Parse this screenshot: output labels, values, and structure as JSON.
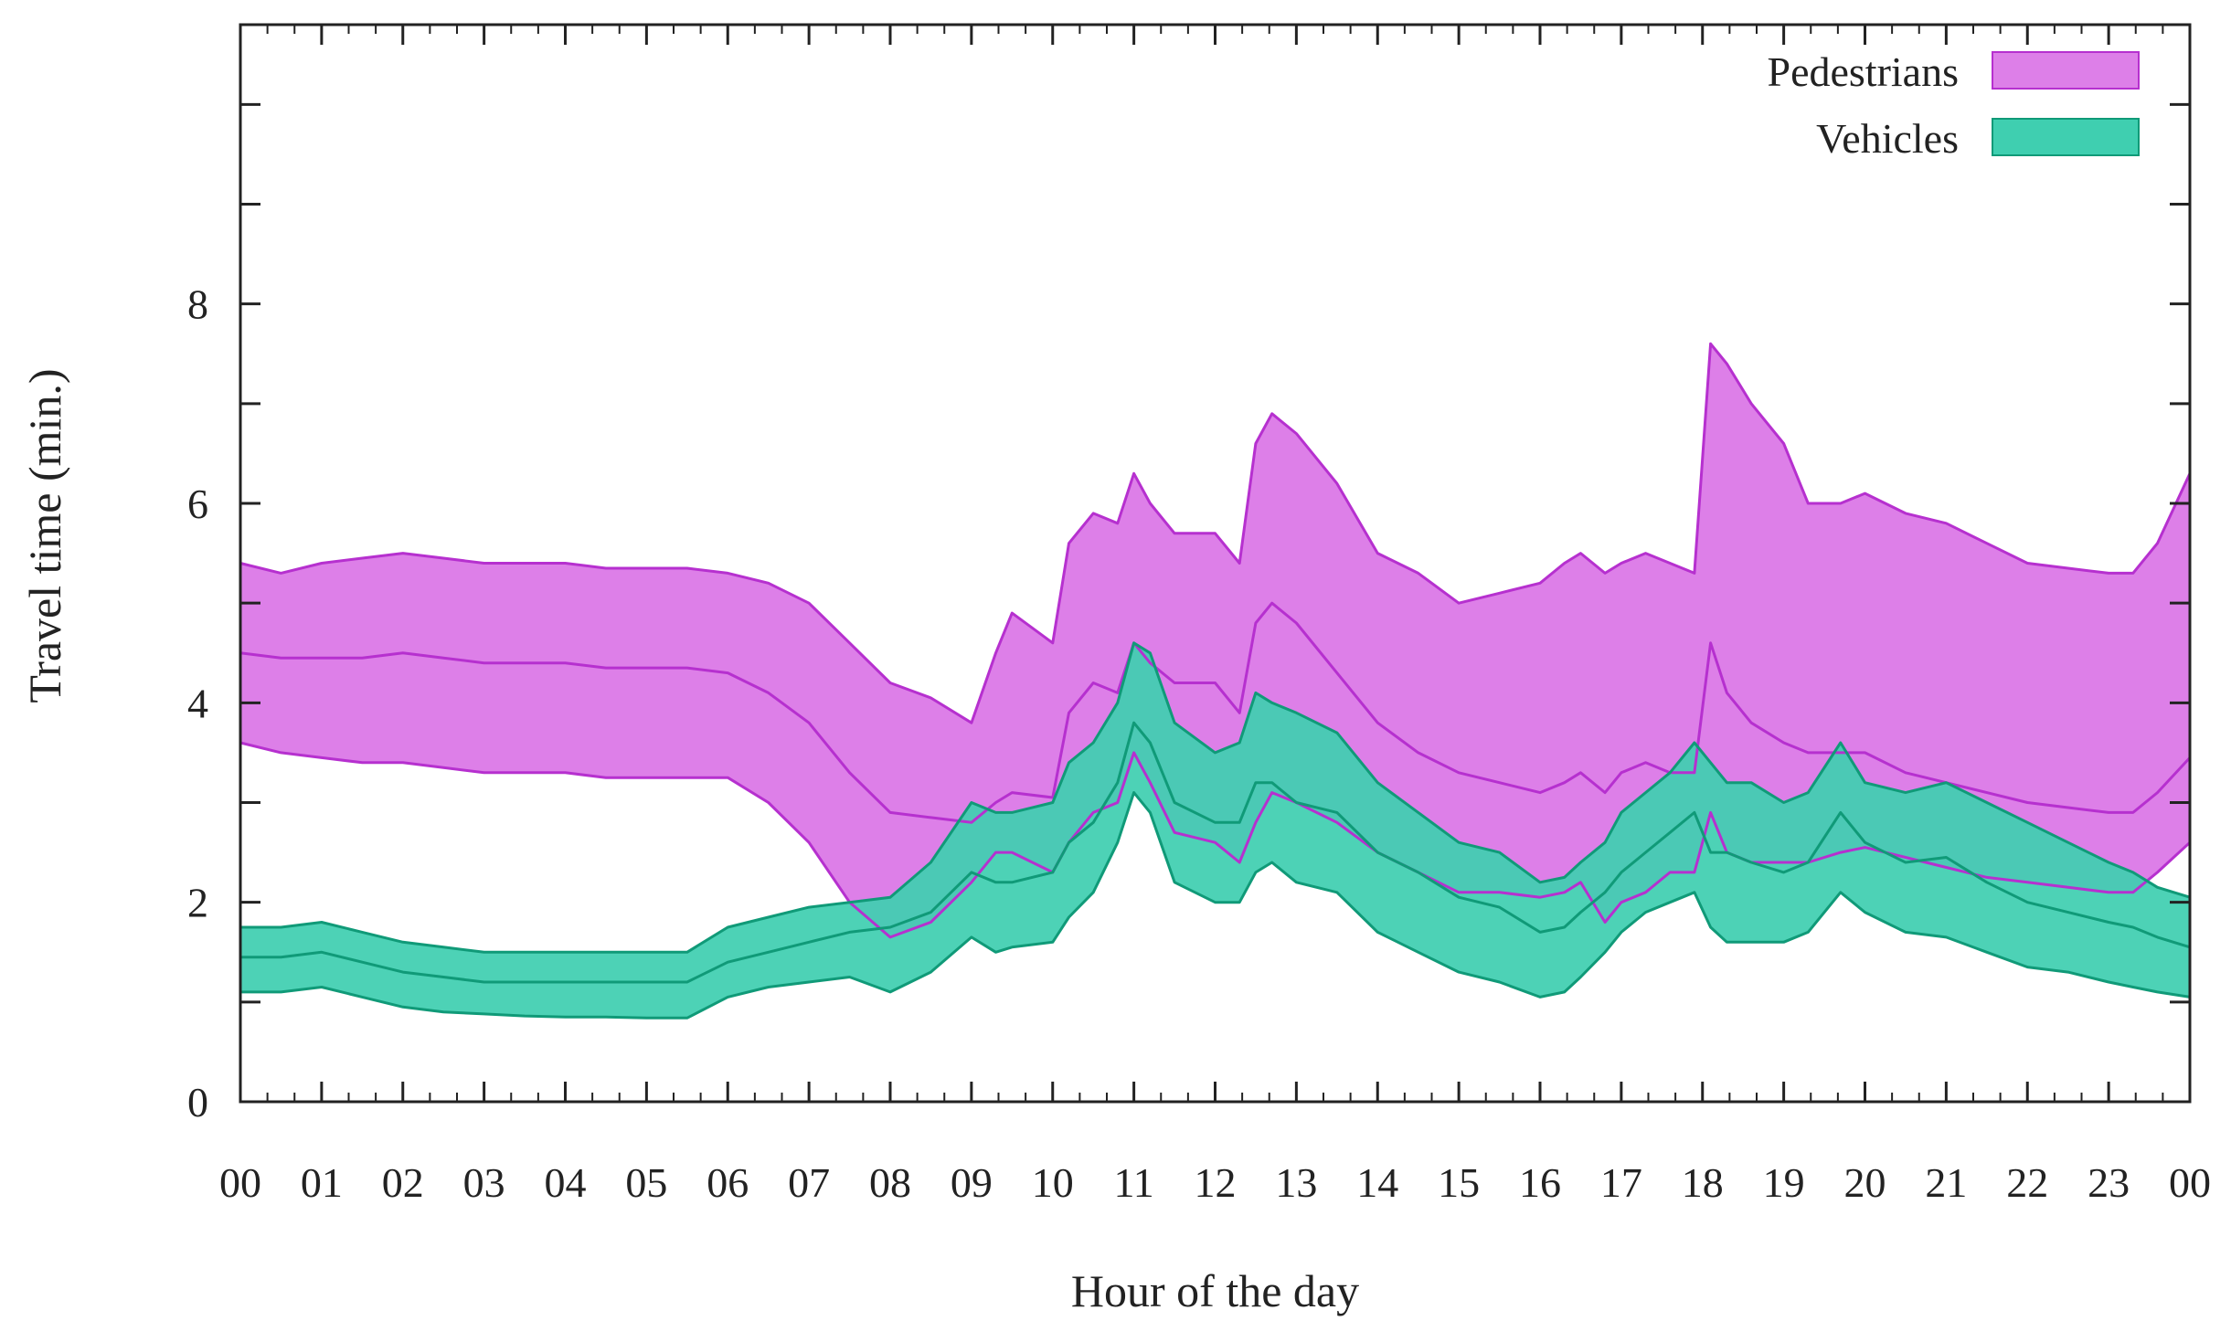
{
  "chart_data": {
    "type": "area",
    "xlabel": "Hour of the day",
    "ylabel": "Travel time (min.)",
    "x_tick_labels": [
      "00",
      "01",
      "02",
      "03",
      "04",
      "05",
      "06",
      "07",
      "08",
      "09",
      "10",
      "11",
      "12",
      "13",
      "14",
      "15",
      "16",
      "17",
      "18",
      "19",
      "20",
      "21",
      "22",
      "23",
      "00"
    ],
    "y_ticks": [
      0,
      2,
      4,
      6,
      8
    ],
    "xlim": [
      0,
      24
    ],
    "ylim": [
      0,
      10.8
    ],
    "legend_position": "top-right",
    "grid": false,
    "x": [
      0,
      0.5,
      1,
      1.5,
      2,
      2.5,
      3,
      3.5,
      4,
      4.5,
      5,
      5.5,
      6,
      6.5,
      7,
      7.5,
      8,
      8.5,
      9,
      9.3,
      9.5,
      10,
      10.2,
      10.5,
      10.8,
      11,
      11.2,
      11.5,
      12,
      12.3,
      12.5,
      12.7,
      13,
      13.5,
      14,
      14.5,
      15,
      15.5,
      16,
      16.3,
      16.5,
      16.8,
      17,
      17.3,
      17.6,
      17.9,
      18.1,
      18.3,
      18.6,
      19,
      19.3,
      19.7,
      20,
      20.5,
      21,
      21.5,
      22,
      22.5,
      23,
      23.3,
      23.6,
      24
    ],
    "series": [
      {
        "name": "Pedestrians",
        "color": "#dd7fe8",
        "edge_color": "#b630cf",
        "upper": [
          5.4,
          5.3,
          5.4,
          5.45,
          5.5,
          5.45,
          5.4,
          5.4,
          5.4,
          5.35,
          5.35,
          5.35,
          5.3,
          5.2,
          5.0,
          4.6,
          4.2,
          4.05,
          3.8,
          4.5,
          4.9,
          4.6,
          5.6,
          5.9,
          5.8,
          6.3,
          6.0,
          5.7,
          5.7,
          5.4,
          6.6,
          6.9,
          6.7,
          6.2,
          5.5,
          5.3,
          5.0,
          5.1,
          5.2,
          5.4,
          5.5,
          5.3,
          5.4,
          5.5,
          5.4,
          5.3,
          7.6,
          7.4,
          7.0,
          6.6,
          6.0,
          6.0,
          6.1,
          5.9,
          5.8,
          5.6,
          5.4,
          5.35,
          5.3,
          5.3,
          5.6,
          6.3
        ],
        "middle": [
          4.5,
          4.45,
          4.45,
          4.45,
          4.5,
          4.45,
          4.4,
          4.4,
          4.4,
          4.35,
          4.35,
          4.35,
          4.3,
          4.1,
          3.8,
          3.3,
          2.9,
          2.85,
          2.8,
          3.0,
          3.1,
          3.05,
          3.9,
          4.2,
          4.1,
          4.6,
          4.4,
          4.2,
          4.2,
          3.9,
          4.8,
          5.0,
          4.8,
          4.3,
          3.8,
          3.5,
          3.3,
          3.2,
          3.1,
          3.2,
          3.3,
          3.1,
          3.3,
          3.4,
          3.3,
          3.3,
          4.6,
          4.1,
          3.8,
          3.6,
          3.5,
          3.5,
          3.5,
          3.3,
          3.2,
          3.1,
          3.0,
          2.95,
          2.9,
          2.9,
          3.1,
          3.45
        ],
        "lower": [
          3.6,
          3.5,
          3.45,
          3.4,
          3.4,
          3.35,
          3.3,
          3.3,
          3.3,
          3.25,
          3.25,
          3.25,
          3.25,
          3.0,
          2.6,
          2.0,
          1.65,
          1.8,
          2.2,
          2.5,
          2.5,
          2.3,
          2.6,
          2.9,
          3.0,
          3.5,
          3.2,
          2.7,
          2.6,
          2.4,
          2.8,
          3.1,
          3.0,
          2.8,
          2.5,
          2.3,
          2.1,
          2.1,
          2.05,
          2.1,
          2.2,
          1.8,
          2.0,
          2.1,
          2.3,
          2.3,
          2.9,
          2.5,
          2.4,
          2.4,
          2.4,
          2.5,
          2.55,
          2.45,
          2.35,
          2.25,
          2.2,
          2.15,
          2.1,
          2.1,
          2.3,
          2.6
        ]
      },
      {
        "name": "Vehicles",
        "color": "#3fcfb0",
        "edge_color": "#109a78",
        "upper": [
          1.75,
          1.75,
          1.8,
          1.7,
          1.6,
          1.55,
          1.5,
          1.5,
          1.5,
          1.5,
          1.5,
          1.5,
          1.75,
          1.85,
          1.95,
          2.0,
          2.05,
          2.4,
          3.0,
          2.9,
          2.9,
          3.0,
          3.4,
          3.6,
          4.0,
          4.6,
          4.5,
          3.8,
          3.5,
          3.6,
          4.1,
          4.0,
          3.9,
          3.7,
          3.2,
          2.9,
          2.6,
          2.5,
          2.2,
          2.25,
          2.4,
          2.6,
          2.9,
          3.1,
          3.3,
          3.6,
          3.4,
          3.2,
          3.2,
          3.0,
          3.1,
          3.6,
          3.2,
          3.1,
          3.2,
          3.0,
          2.8,
          2.6,
          2.4,
          2.3,
          2.15,
          2.05
        ],
        "middle": [
          1.45,
          1.45,
          1.5,
          1.4,
          1.3,
          1.25,
          1.2,
          1.2,
          1.2,
          1.2,
          1.2,
          1.2,
          1.4,
          1.5,
          1.6,
          1.7,
          1.75,
          1.9,
          2.3,
          2.2,
          2.2,
          2.3,
          2.6,
          2.8,
          3.2,
          3.8,
          3.6,
          3.0,
          2.8,
          2.8,
          3.2,
          3.2,
          3.0,
          2.9,
          2.5,
          2.3,
          2.05,
          1.95,
          1.7,
          1.75,
          1.9,
          2.1,
          2.3,
          2.5,
          2.7,
          2.9,
          2.5,
          2.5,
          2.4,
          2.3,
          2.4,
          2.9,
          2.6,
          2.4,
          2.45,
          2.2,
          2.0,
          1.9,
          1.8,
          1.75,
          1.65,
          1.55
        ],
        "lower": [
          1.1,
          1.1,
          1.15,
          1.05,
          0.95,
          0.9,
          0.88,
          0.86,
          0.85,
          0.85,
          0.84,
          0.84,
          1.05,
          1.15,
          1.2,
          1.25,
          1.1,
          1.3,
          1.65,
          1.5,
          1.55,
          1.6,
          1.85,
          2.1,
          2.6,
          3.1,
          2.9,
          2.2,
          2.0,
          2.0,
          2.3,
          2.4,
          2.2,
          2.1,
          1.7,
          1.5,
          1.3,
          1.2,
          1.05,
          1.1,
          1.25,
          1.5,
          1.7,
          1.9,
          2.0,
          2.1,
          1.75,
          1.6,
          1.6,
          1.6,
          1.7,
          2.1,
          1.9,
          1.7,
          1.65,
          1.5,
          1.35,
          1.3,
          1.2,
          1.15,
          1.1,
          1.05
        ]
      }
    ]
  }
}
